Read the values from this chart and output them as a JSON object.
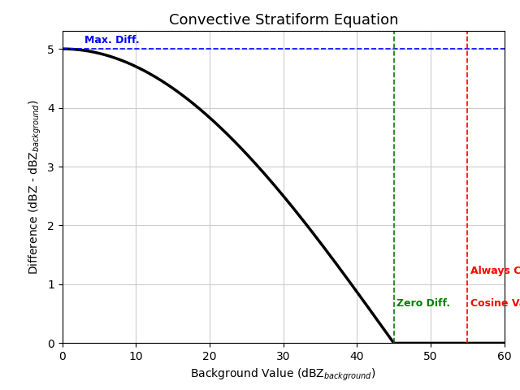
{
  "title": "Convective Stratiform Equation",
  "xlabel": "Background Value (dBZ$_{background}$)",
  "ylabel": "Difference (dBZ - dBZ$_{background}$)",
  "xlim": [
    0,
    60
  ],
  "ylim": [
    0,
    5.3
  ],
  "yticks": [
    0,
    1,
    2,
    3,
    4,
    5
  ],
  "xticks": [
    0,
    10,
    20,
    30,
    40,
    50,
    60
  ],
  "max_diff": 5.0,
  "zero_diff_x": 45.0,
  "cosine_val_x": 55.0,
  "curve_color": "#000000",
  "curve_linewidth": 2.5,
  "hline_color": "#0000ff",
  "hline_label": "Max. Diff.",
  "vline_green_color": "#008000",
  "vline_green_label": "Zero Diff.",
  "vline_red_color": "#ff0000",
  "vline_red_label1": "Always Core",
  "vline_red_label2": "Cosine Val.",
  "background_color": "#ffffff",
  "grid_color": "#cccccc",
  "title_fontsize": 13,
  "label_fontsize": 10,
  "annotation_fontsize": 9
}
